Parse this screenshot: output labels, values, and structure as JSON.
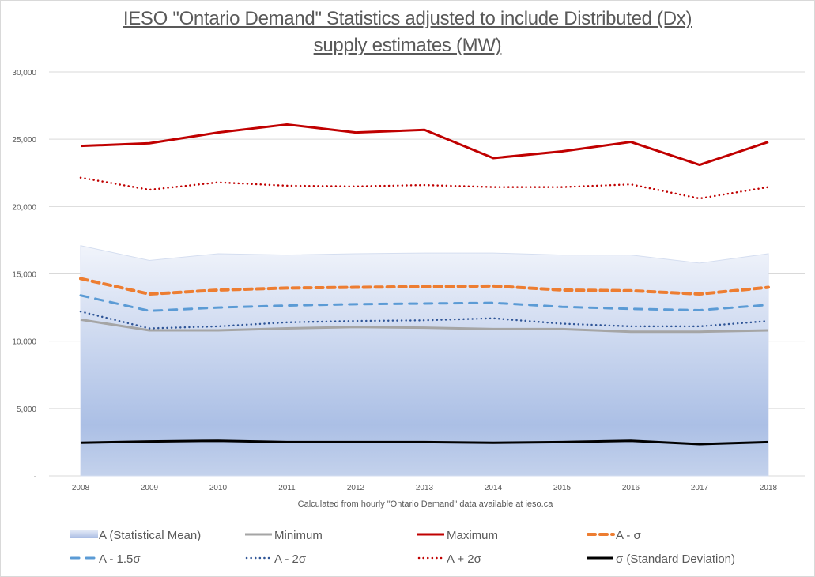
{
  "chart_data": {
    "type": "line",
    "title": "IESO \"Ontario Demand\" Statistics adjusted to include Distributed (Dx)",
    "title_line2": "supply estimates (MW)",
    "xlabel": "Calculated from hourly \"Ontario Demand\" data available at ieso.ca",
    "ylabel": "",
    "ylim": [
      0,
      30000
    ],
    "yticks": [
      0,
      5000,
      10000,
      15000,
      20000,
      25000,
      30000
    ],
    "ytick_labels": [
      "-",
      "5,000",
      "10,000",
      "15,000",
      "20,000",
      "25,000",
      "30,000"
    ],
    "grid": true,
    "legend_position": "bottom",
    "categories": [
      "2008",
      "2009",
      "2010",
      "2011",
      "2012",
      "2013",
      "2014",
      "2015",
      "2016",
      "2017",
      "2018"
    ],
    "series": [
      {
        "name": "A (Statistical Mean)",
        "style": "area",
        "color": "#a9bde4",
        "values": [
          17100,
          16000,
          16500,
          16400,
          16500,
          16550,
          16550,
          16400,
          16400,
          15800,
          16500
        ]
      },
      {
        "name": "Minimum",
        "style": "solid",
        "color": "#a5a5a5",
        "values": [
          11600,
          10800,
          10800,
          10950,
          11050,
          11000,
          10900,
          10900,
          10700,
          10700,
          10800
        ]
      },
      {
        "name": "Maximum",
        "style": "solid",
        "color": "#c00000",
        "values": [
          24500,
          24700,
          25500,
          26100,
          25500,
          25700,
          23600,
          24100,
          24800,
          23100,
          24800
        ]
      },
      {
        "name": "A - σ",
        "style": "dash-heavy",
        "color": "#ed7d31",
        "values": [
          14650,
          13500,
          13800,
          13950,
          14000,
          14050,
          14100,
          13800,
          13750,
          13500,
          14000
        ]
      },
      {
        "name": "A - 1.5σ",
        "style": "dash-long",
        "color": "#5b9bd5",
        "values": [
          13400,
          12250,
          12500,
          12650,
          12750,
          12800,
          12850,
          12550,
          12400,
          12300,
          12700
        ]
      },
      {
        "name": "A - 2σ",
        "style": "dot",
        "color": "#2f5597",
        "values": [
          12200,
          10950,
          11100,
          11400,
          11500,
          11550,
          11700,
          11300,
          11100,
          11100,
          11500
        ]
      },
      {
        "name": "A + 2σ",
        "style": "dot",
        "color": "#c00000",
        "values": [
          22150,
          21250,
          21800,
          21550,
          21500,
          21600,
          21450,
          21450,
          21650,
          20600,
          21450
        ]
      },
      {
        "name": "σ (Standard Deviation)",
        "style": "solid",
        "color": "#000000",
        "values": [
          2450,
          2550,
          2600,
          2500,
          2500,
          2500,
          2450,
          2500,
          2600,
          2350,
          2500
        ]
      }
    ]
  }
}
